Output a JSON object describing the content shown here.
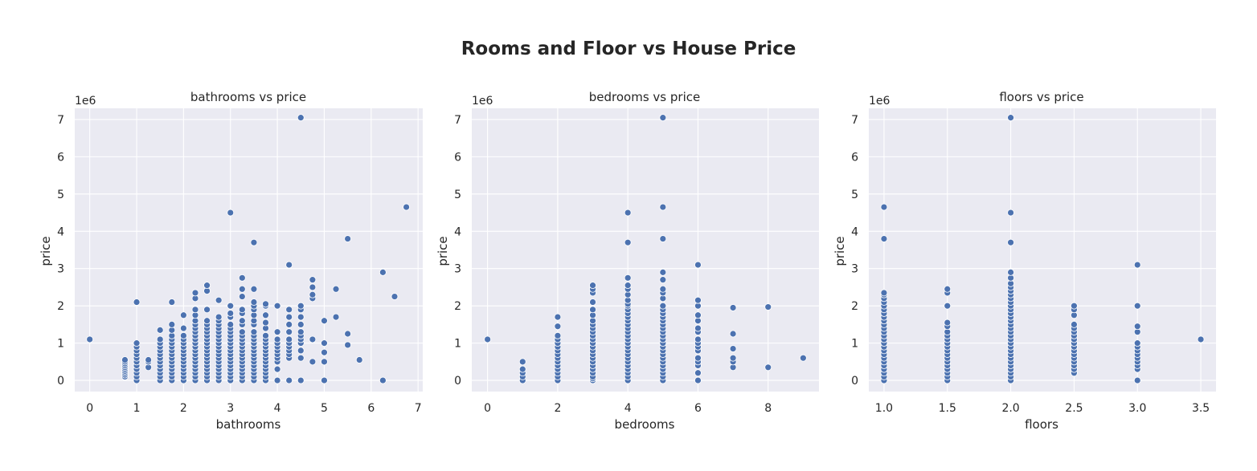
{
  "figure": {
    "title": "Rooms and Floor vs House Price",
    "colors": {
      "background": "#eaeaf2",
      "grid": "#ffffff",
      "marker": "#4c72b0",
      "text": "#262626"
    }
  },
  "chart_data": [
    {
      "type": "scatter",
      "title": "bathrooms vs price",
      "xlabel": "bathrooms",
      "ylabel": "price",
      "y_offset_label": "1e6",
      "xlim": [
        -0.32,
        7.1
      ],
      "ylim": [
        -0.3,
        7.3
      ],
      "xticks": [
        0,
        1,
        2,
        3,
        4,
        5,
        6,
        7
      ],
      "xtick_labels": [
        "0",
        "1",
        "2",
        "3",
        "4",
        "5",
        "6",
        "7"
      ],
      "yticks": [
        0,
        1,
        2,
        3,
        4,
        5,
        6,
        7
      ],
      "ytick_labels": [
        "0",
        "1",
        "2",
        "3",
        "4",
        "5",
        "6",
        "7"
      ],
      "grid": true,
      "points_y_1e6": [
        [
          0,
          [
            1.1
          ]
        ],
        [
          0.75,
          [
            0.1,
            0.15,
            0.2,
            0.25,
            0.3,
            0.35,
            0.4,
            0.45,
            0.5,
            0.55
          ]
        ],
        [
          1.0,
          [
            0,
            0.1,
            0.2,
            0.3,
            0.4,
            0.5,
            0.6,
            0.7,
            0.8,
            0.9,
            1.0,
            2.1
          ]
        ],
        [
          1.25,
          [
            0.35,
            0.5,
            0.55
          ]
        ],
        [
          1.5,
          [
            0,
            0.1,
            0.2,
            0.3,
            0.4,
            0.5,
            0.6,
            0.7,
            0.8,
            0.9,
            1.0,
            1.1,
            1.35
          ]
        ],
        [
          1.75,
          [
            0,
            0.1,
            0.2,
            0.3,
            0.4,
            0.5,
            0.6,
            0.7,
            0.8,
            0.9,
            1.0,
            1.1,
            1.2,
            1.35,
            1.5,
            2.1
          ]
        ],
        [
          2.0,
          [
            0,
            0.1,
            0.2,
            0.3,
            0.4,
            0.5,
            0.6,
            0.7,
            0.8,
            0.9,
            1.0,
            1.1,
            1.2,
            1.4,
            1.75
          ]
        ],
        [
          2.25,
          [
            0,
            0.1,
            0.2,
            0.3,
            0.4,
            0.5,
            0.6,
            0.7,
            0.8,
            0.9,
            1.0,
            1.1,
            1.2,
            1.3,
            1.4,
            1.5,
            1.6,
            1.75,
            1.9,
            2.2,
            2.35
          ]
        ],
        [
          2.5,
          [
            0,
            0.1,
            0.2,
            0.3,
            0.4,
            0.5,
            0.6,
            0.7,
            0.8,
            0.9,
            1.0,
            1.1,
            1.2,
            1.3,
            1.4,
            1.5,
            1.6,
            1.9,
            2.4,
            2.55
          ]
        ],
        [
          2.75,
          [
            0,
            0.1,
            0.2,
            0.3,
            0.4,
            0.5,
            0.6,
            0.7,
            0.8,
            0.9,
            1.0,
            1.1,
            1.2,
            1.3,
            1.4,
            1.5,
            1.6,
            1.7,
            2.15
          ]
        ],
        [
          3.0,
          [
            0,
            0.1,
            0.2,
            0.3,
            0.4,
            0.5,
            0.6,
            0.7,
            0.8,
            0.9,
            1.0,
            1.1,
            1.2,
            1.3,
            1.4,
            1.5,
            1.7,
            1.8,
            2.0,
            4.5
          ]
        ],
        [
          3.25,
          [
            0,
            0.1,
            0.2,
            0.3,
            0.4,
            0.5,
            0.6,
            0.7,
            0.8,
            0.9,
            1.0,
            1.1,
            1.2,
            1.3,
            1.5,
            1.6,
            1.8,
            1.9,
            2.25,
            2.45,
            2.75
          ]
        ],
        [
          3.5,
          [
            0,
            0.1,
            0.2,
            0.3,
            0.4,
            0.5,
            0.6,
            0.7,
            0.8,
            0.9,
            1.0,
            1.1,
            1.2,
            1.3,
            1.5,
            1.6,
            1.75,
            1.9,
            2.0,
            2.1,
            2.45,
            3.7
          ]
        ],
        [
          3.75,
          [
            0,
            0.1,
            0.2,
            0.3,
            0.4,
            0.5,
            0.6,
            0.7,
            0.8,
            0.9,
            1.0,
            1.1,
            1.2,
            1.4,
            1.55,
            1.75,
            2.0,
            2.05
          ]
        ],
        [
          4.0,
          [
            0,
            0.3,
            0.5,
            0.6,
            0.7,
            0.8,
            0.9,
            1.0,
            1.1,
            1.3,
            2.0
          ]
        ],
        [
          4.25,
          [
            0,
            0.6,
            0.7,
            0.8,
            0.9,
            1.0,
            1.1,
            1.3,
            1.5,
            1.7,
            1.9,
            3.1
          ]
        ],
        [
          4.5,
          [
            0,
            0.6,
            0.8,
            1.0,
            1.1,
            1.2,
            1.3,
            1.5,
            1.7,
            1.9,
            2.0,
            7.05
          ]
        ],
        [
          4.75,
          [
            0.5,
            1.1,
            2.2,
            2.3,
            2.5,
            2.7
          ]
        ],
        [
          5.0,
          [
            0,
            0.5,
            0.75,
            1.0,
            1.6
          ]
        ],
        [
          5.25,
          [
            1.7,
            2.45
          ]
        ],
        [
          5.5,
          [
            0.95,
            1.25,
            3.8
          ]
        ],
        [
          5.75,
          [
            0.55
          ]
        ],
        [
          6.25,
          [
            0,
            2.9
          ]
        ],
        [
          6.5,
          [
            2.25
          ]
        ],
        [
          6.75,
          [
            4.65
          ]
        ]
      ]
    },
    {
      "type": "scatter",
      "title": "bedrooms vs price",
      "xlabel": "bedrooms",
      "ylabel": "price",
      "y_offset_label": "1e6",
      "xlim": [
        -0.45,
        9.45
      ],
      "ylim": [
        -0.3,
        7.3
      ],
      "xticks": [
        0,
        2,
        4,
        6,
        8
      ],
      "xtick_labels": [
        "0",
        "2",
        "4",
        "6",
        "8"
      ],
      "yticks": [
        0,
        1,
        2,
        3,
        4,
        5,
        6,
        7
      ],
      "ytick_labels": [
        "0",
        "1",
        "2",
        "3",
        "4",
        "5",
        "6",
        "7"
      ],
      "grid": true,
      "points_y_1e6": [
        [
          0,
          [
            1.1
          ]
        ],
        [
          1,
          [
            0,
            0.1,
            0.2,
            0.3,
            0.5
          ]
        ],
        [
          2,
          [
            0,
            0.1,
            0.2,
            0.3,
            0.4,
            0.5,
            0.6,
            0.7,
            0.8,
            0.9,
            1.0,
            1.1,
            1.2,
            1.45,
            1.7
          ]
        ],
        [
          3,
          [
            0,
            0.05,
            0.1,
            0.2,
            0.3,
            0.4,
            0.5,
            0.6,
            0.7,
            0.8,
            0.9,
            1.0,
            1.1,
            1.2,
            1.3,
            1.4,
            1.5,
            1.6,
            1.75,
            1.9,
            2.1,
            2.35,
            2.45,
            2.55
          ]
        ],
        [
          4,
          [
            0,
            0.1,
            0.2,
            0.3,
            0.4,
            0.5,
            0.6,
            0.7,
            0.8,
            0.9,
            1.0,
            1.1,
            1.2,
            1.3,
            1.4,
            1.5,
            1.6,
            1.7,
            1.8,
            1.9,
            2.0,
            2.05,
            2.15,
            2.3,
            2.45,
            2.55,
            2.75,
            3.7,
            4.5
          ]
        ],
        [
          5,
          [
            0,
            0.1,
            0.2,
            0.3,
            0.4,
            0.5,
            0.6,
            0.7,
            0.8,
            0.9,
            1.0,
            1.1,
            1.2,
            1.3,
            1.4,
            1.5,
            1.6,
            1.7,
            1.8,
            1.9,
            2.0,
            2.2,
            2.35,
            2.45,
            2.7,
            2.9,
            3.8,
            4.65,
            7.05
          ]
        ],
        [
          6,
          [
            0,
            0.2,
            0.4,
            0.5,
            0.6,
            0.8,
            0.9,
            1.0,
            1.1,
            1.3,
            1.4,
            1.6,
            1.75,
            2.0,
            2.15,
            3.1
          ]
        ],
        [
          7,
          [
            0.35,
            0.5,
            0.6,
            0.85,
            1.25,
            1.95
          ]
        ],
        [
          8,
          [
            0.35,
            1.97
          ]
        ],
        [
          9,
          [
            0.6
          ]
        ]
      ]
    },
    {
      "type": "scatter",
      "title": "floors vs price",
      "xlabel": "floors",
      "ylabel": "price",
      "y_offset_label": "1e6",
      "xlim": [
        0.88,
        3.62
      ],
      "ylim": [
        -0.3,
        7.3
      ],
      "xticks": [
        1.0,
        1.5,
        2.0,
        2.5,
        3.0,
        3.5
      ],
      "xtick_labels": [
        "1.0",
        "1.5",
        "2.0",
        "2.5",
        "3.0",
        "3.5"
      ],
      "yticks": [
        0,
        1,
        2,
        3,
        4,
        5,
        6,
        7
      ],
      "ytick_labels": [
        "0",
        "1",
        "2",
        "3",
        "4",
        "5",
        "6",
        "7"
      ],
      "grid": true,
      "points_y_1e6": [
        [
          1.0,
          [
            0,
            0.1,
            0.2,
            0.3,
            0.4,
            0.5,
            0.6,
            0.7,
            0.8,
            0.9,
            1.0,
            1.1,
            1.2,
            1.3,
            1.4,
            1.5,
            1.6,
            1.7,
            1.8,
            1.9,
            2.0,
            2.1,
            2.2,
            2.3,
            2.35,
            3.8,
            4.65
          ]
        ],
        [
          1.5,
          [
            0,
            0.1,
            0.2,
            0.3,
            0.4,
            0.5,
            0.6,
            0.7,
            0.8,
            0.9,
            1.0,
            1.1,
            1.2,
            1.3,
            1.45,
            1.55,
            2.0,
            2.35,
            2.45
          ]
        ],
        [
          2.0,
          [
            0,
            0.1,
            0.2,
            0.3,
            0.4,
            0.5,
            0.6,
            0.7,
            0.8,
            0.9,
            1.0,
            1.1,
            1.2,
            1.3,
            1.4,
            1.5,
            1.6,
            1.7,
            1.8,
            1.9,
            2.0,
            2.1,
            2.2,
            2.3,
            2.4,
            2.5,
            2.6,
            2.75,
            2.9,
            3.7,
            4.5,
            7.05
          ]
        ],
        [
          2.5,
          [
            0.2,
            0.3,
            0.4,
            0.5,
            0.6,
            0.7,
            0.8,
            0.9,
            1.0,
            1.1,
            1.2,
            1.3,
            1.4,
            1.5,
            1.75,
            1.9,
            2.0
          ]
        ],
        [
          3.0,
          [
            0,
            0.3,
            0.4,
            0.5,
            0.6,
            0.7,
            0.8,
            0.9,
            1.0,
            1.3,
            1.45,
            2.0,
            3.1
          ]
        ],
        [
          3.5,
          [
            1.1
          ]
        ]
      ]
    }
  ]
}
